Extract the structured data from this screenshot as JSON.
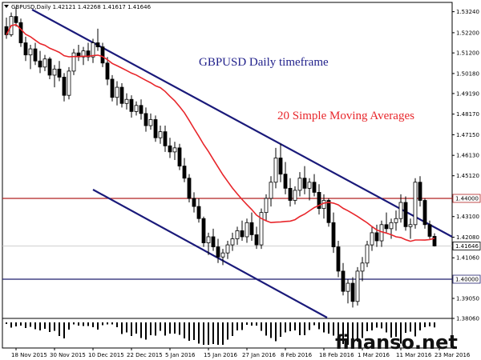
{
  "chart_data": {
    "type": "candlestick",
    "symbol_header": "GBPUSD,Daily  1.42121 1.42268 1.41617 1.41646",
    "annotations": {
      "title": "GBPUSD Daily timeframe",
      "indicator": "20 Simple Moving Averages"
    },
    "ylim": [
      1.3806,
      1.537
    ],
    "y_ticks": [
      "1.53240",
      "1.52200",
      "1.51200",
      "1.50180",
      "1.49190",
      "1.48170",
      "1.47150",
      "1.46130",
      "1.45120",
      "1.44100",
      "1.43100",
      "1.42080",
      "1.41060",
      "1.40060",
      "1.39050",
      "1.38060"
    ],
    "x_labels": [
      "18 Nov 2015",
      "30 Nov 2015",
      "10 Dec 2015",
      "22 Dec 2015",
      "5 Jan 2016",
      "15 Jan 2016",
      "27 Jan 2016",
      "8 Feb 2016",
      "18 Feb 2016",
      "1 Mar 2016",
      "11 Mar 2016",
      "23 Mar 2016"
    ],
    "levels": [
      {
        "label": "1.44000",
        "value": 1.44,
        "color": "#b22222"
      },
      {
        "label": "1.40000",
        "value": 1.4,
        "color": "#1f1f6e"
      }
    ],
    "current_price": {
      "label": "1.41646",
      "value": 1.41646
    },
    "channel_color": "#1a1a7a",
    "ma_color": "#e8262b",
    "candles": [
      [
        1.525,
        1.5295,
        1.519,
        1.521
      ],
      [
        1.521,
        1.532,
        1.52,
        1.53
      ],
      [
        1.53,
        1.5345,
        1.525,
        1.527
      ],
      [
        1.527,
        1.529,
        1.515,
        1.517
      ],
      [
        1.517,
        1.52,
        1.508,
        1.511
      ],
      [
        1.511,
        1.516,
        1.504,
        1.514
      ],
      [
        1.514,
        1.517,
        1.506,
        1.508
      ],
      [
        1.508,
        1.513,
        1.502,
        1.505
      ],
      [
        1.505,
        1.511,
        1.503,
        1.509
      ],
      [
        1.509,
        1.51,
        1.499,
        1.501
      ],
      [
        1.501,
        1.506,
        1.495,
        1.504
      ],
      [
        1.504,
        1.508,
        1.498,
        1.5
      ],
      [
        1.5,
        1.502,
        1.488,
        1.491
      ],
      [
        1.491,
        1.505,
        1.489,
        1.503
      ],
      [
        1.503,
        1.514,
        1.501,
        1.512
      ],
      [
        1.512,
        1.516,
        1.508,
        1.51
      ],
      [
        1.51,
        1.515,
        1.506,
        1.513
      ],
      [
        1.513,
        1.517,
        1.508,
        1.51
      ],
      [
        1.51,
        1.519,
        1.507,
        1.517
      ],
      [
        1.517,
        1.524,
        1.513,
        1.515
      ],
      [
        1.515,
        1.517,
        1.505,
        1.507
      ],
      [
        1.507,
        1.51,
        1.496,
        1.499
      ],
      [
        1.499,
        1.501,
        1.488,
        1.49
      ],
      [
        1.49,
        1.498,
        1.486,
        1.495
      ],
      [
        1.495,
        1.497,
        1.485,
        1.487
      ],
      [
        1.487,
        1.492,
        1.484,
        1.489
      ],
      [
        1.489,
        1.491,
        1.48,
        1.483
      ],
      [
        1.483,
        1.488,
        1.481,
        1.486
      ],
      [
        1.486,
        1.489,
        1.479,
        1.482
      ],
      [
        1.482,
        1.485,
        1.473,
        1.476
      ],
      [
        1.476,
        1.482,
        1.474,
        1.479
      ],
      [
        1.479,
        1.481,
        1.468,
        1.47
      ],
      [
        1.47,
        1.476,
        1.467,
        1.473
      ],
      [
        1.473,
        1.476,
        1.463,
        1.466
      ],
      [
        1.466,
        1.47,
        1.46,
        1.463
      ],
      [
        1.463,
        1.468,
        1.459,
        1.465
      ],
      [
        1.465,
        1.467,
        1.454,
        1.456
      ],
      [
        1.456,
        1.46,
        1.448,
        1.45
      ],
      [
        1.45,
        1.452,
        1.438,
        1.44
      ],
      [
        1.44,
        1.443,
        1.433,
        1.436
      ],
      [
        1.436,
        1.44,
        1.428,
        1.43
      ],
      [
        1.43,
        1.431,
        1.416,
        1.418
      ],
      [
        1.418,
        1.423,
        1.412,
        1.421
      ],
      [
        1.421,
        1.425,
        1.414,
        1.416
      ],
      [
        1.416,
        1.42,
        1.408,
        1.411
      ],
      [
        1.411,
        1.415,
        1.407,
        1.413
      ],
      [
        1.413,
        1.419,
        1.41,
        1.417
      ],
      [
        1.417,
        1.423,
        1.414,
        1.42
      ],
      [
        1.42,
        1.426,
        1.417,
        1.424
      ],
      [
        1.424,
        1.429,
        1.419,
        1.421
      ],
      [
        1.421,
        1.43,
        1.418,
        1.428
      ],
      [
        1.428,
        1.433,
        1.419,
        1.422
      ],
      [
        1.422,
        1.426,
        1.415,
        1.417
      ],
      [
        1.417,
        1.435,
        1.415,
        1.433
      ],
      [
        1.433,
        1.442,
        1.429,
        1.44
      ],
      [
        1.44,
        1.451,
        1.436,
        1.448
      ],
      [
        1.448,
        1.465,
        1.445,
        1.46
      ],
      [
        1.46,
        1.467,
        1.448,
        1.452
      ],
      [
        1.452,
        1.458,
        1.442,
        1.445
      ],
      [
        1.445,
        1.45,
        1.436,
        1.439
      ],
      [
        1.439,
        1.446,
        1.437,
        1.444
      ],
      [
        1.444,
        1.453,
        1.441,
        1.45
      ],
      [
        1.45,
        1.456,
        1.442,
        1.445
      ],
      [
        1.445,
        1.45,
        1.439,
        1.448
      ],
      [
        1.448,
        1.452,
        1.441,
        1.443
      ],
      [
        1.443,
        1.447,
        1.432,
        1.435
      ],
      [
        1.435,
        1.442,
        1.43,
        1.439
      ],
      [
        1.439,
        1.44,
        1.426,
        1.428
      ],
      [
        1.428,
        1.433,
        1.413,
        1.416
      ],
      [
        1.416,
        1.419,
        1.401,
        1.404
      ],
      [
        1.404,
        1.408,
        1.392,
        1.394
      ],
      [
        1.394,
        1.4,
        1.388,
        1.398
      ],
      [
        1.398,
        1.401,
        1.386,
        1.389
      ],
      [
        1.389,
        1.406,
        1.387,
        1.404
      ],
      [
        1.404,
        1.411,
        1.399,
        1.408
      ],
      [
        1.408,
        1.419,
        1.406,
        1.417
      ],
      [
        1.417,
        1.426,
        1.414,
        1.423
      ],
      [
        1.423,
        1.427,
        1.416,
        1.419
      ],
      [
        1.419,
        1.429,
        1.416,
        1.427
      ],
      [
        1.427,
        1.433,
        1.423,
        1.425
      ],
      [
        1.425,
        1.43,
        1.42,
        1.428
      ],
      [
        1.428,
        1.434,
        1.424,
        1.43
      ],
      [
        1.43,
        1.442,
        1.428,
        1.438
      ],
      [
        1.438,
        1.441,
        1.424,
        1.426
      ],
      [
        1.426,
        1.43,
        1.42,
        1.427
      ],
      [
        1.427,
        1.45,
        1.425,
        1.448
      ],
      [
        1.448,
        1.451,
        1.436,
        1.439
      ],
      [
        1.439,
        1.44,
        1.425,
        1.427
      ],
      [
        1.427,
        1.429,
        1.42,
        1.4212
      ],
      [
        1.4212,
        1.4227,
        1.4162,
        1.41646
      ]
    ]
  }
}
